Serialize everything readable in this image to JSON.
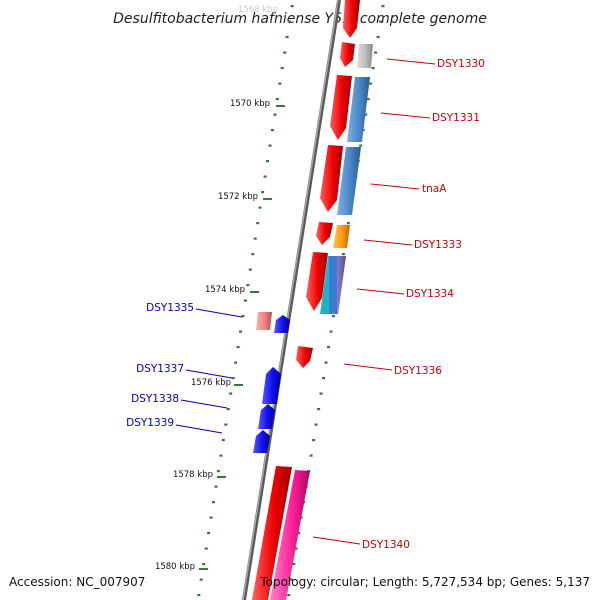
{
  "title": "Desulfitobacterium hafniense Y51, complete genome",
  "footer": {
    "accession": "Accession: NC_007907",
    "topology": "Topology: circular; Length: 5,727,534 bp; Genes: 5,137"
  },
  "colors": {
    "backbone": "#777777",
    "tick": "#2e7d32",
    "right_label": "#cc0000",
    "left_label": "#0000cc",
    "cds_red": "#ee0000",
    "cds_blue": "#1010ee"
  },
  "ruler": [
    {
      "label": "1568 kbp",
      "kbp": 1568
    },
    {
      "label": "1570 kbp",
      "kbp": 1570
    },
    {
      "label": "1572 kbp",
      "kbp": 1572
    },
    {
      "label": "1574 kbp",
      "kbp": 1574
    },
    {
      "label": "1576 kbp",
      "kbp": 1576
    },
    {
      "label": "1578 kbp",
      "kbp": 1578
    },
    {
      "label": "1580 kbp",
      "kbp": 1580
    }
  ],
  "features": [
    {
      "id": "top-red",
      "strand": "+",
      "ring": 1,
      "start_kbp": 1567.6,
      "end_kbp": 1568.3,
      "color": "#ee0000",
      "label": ""
    },
    {
      "id": "top-gray",
      "strand": "+",
      "ring": 2,
      "start_kbp": 1567.7,
      "end_kbp": 1568.7,
      "color": "#bbbbbb",
      "label": "DSY1330"
    },
    {
      "id": "dsy1331-red",
      "strand": "+",
      "ring": 1,
      "start_kbp": 1569.3,
      "end_kbp": 1570.8,
      "color": "#ee0000",
      "label": ""
    },
    {
      "id": "dsy1331-blue",
      "strand": "+",
      "ring": 2,
      "start_kbp": 1569.3,
      "end_kbp": 1570.8,
      "color": "#4a86c8",
      "label": "DSY1331"
    },
    {
      "id": "tnaa-red",
      "strand": "+",
      "ring": 1,
      "start_kbp": 1570.8,
      "end_kbp": 1572.3,
      "color": "#ee0000",
      "label": ""
    },
    {
      "id": "tnaa-blue",
      "strand": "+",
      "ring": 2,
      "start_kbp": 1570.8,
      "end_kbp": 1572.3,
      "color": "#4a86c8",
      "label": "tnaA"
    },
    {
      "id": "dsy1333-red",
      "strand": "+",
      "ring": 1,
      "start_kbp": 1572.45,
      "end_kbp": 1572.95,
      "color": "#ee0000",
      "label": ""
    },
    {
      "id": "dsy1333-orange",
      "strand": "+",
      "ring": 2,
      "start_kbp": 1572.45,
      "end_kbp": 1572.95,
      "color": "#ff9900",
      "label": "DSY1333"
    },
    {
      "id": "dsy1334-red",
      "strand": "+",
      "ring": 1,
      "start_kbp": 1573.3,
      "end_kbp": 1574.6,
      "color": "#ee0000",
      "label": ""
    },
    {
      "id": "dsy1334-multi",
      "strand": "+",
      "ring": 2,
      "start_kbp": 1573.3,
      "end_kbp": 1574.6,
      "color": "#20b2c0",
      "label": "DSY1334"
    },
    {
      "id": "dsy1336-red",
      "strand": "+",
      "ring": 1,
      "start_kbp": 1575.2,
      "end_kbp": 1575.7,
      "color": "#ee0000",
      "label": "DSY1336"
    },
    {
      "id": "dsy1335-pink",
      "strand": "-",
      "ring": 2,
      "start_kbp": 1574.45,
      "end_kbp": 1574.8,
      "color": "#f08080",
      "label": ""
    },
    {
      "id": "dsy1335-blue",
      "strand": "-",
      "ring": 1,
      "start_kbp": 1574.55,
      "end_kbp": 1574.8,
      "color": "#1010ee",
      "label": "DSY1335"
    },
    {
      "id": "dsy1337-blue",
      "strand": "-",
      "ring": 1,
      "start_kbp": 1575.85,
      "end_kbp": 1576.65,
      "color": "#1010ee",
      "label": "DSY1337"
    },
    {
      "id": "dsy1338-blue",
      "strand": "-",
      "ring": 1,
      "start_kbp": 1576.7,
      "end_kbp": 1577.2,
      "color": "#1010ee",
      "label": "DSY1338"
    },
    {
      "id": "dsy1339-blue",
      "strand": "-",
      "ring": 1,
      "start_kbp": 1577.25,
      "end_kbp": 1577.75,
      "color": "#1010ee",
      "label": "DSY1339"
    },
    {
      "id": "dsy1340-red",
      "strand": "+",
      "ring": 1,
      "start_kbp": 1577.8,
      "end_kbp": 1580.7,
      "color": "#ee0000",
      "label": ""
    },
    {
      "id": "dsy1340-magenta",
      "strand": "+",
      "ring": 2,
      "start_kbp": 1577.9,
      "end_kbp": 1580.4,
      "color": "#ff2299",
      "label": "DSY1340"
    }
  ]
}
